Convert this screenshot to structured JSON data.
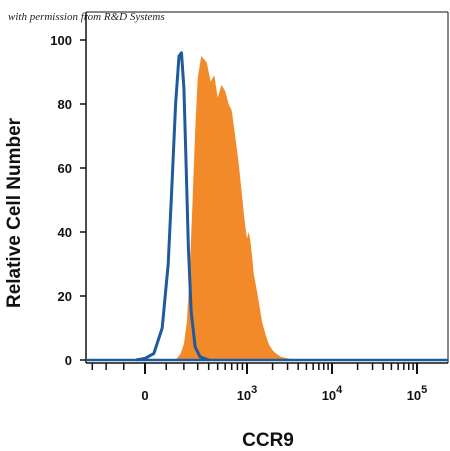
{
  "watermark": "with permission from R&D Systems",
  "chart_data": {
    "type": "area",
    "xlabel": "CCR9",
    "ylabel": "Relative Cell Number",
    "xscale": "biexponential",
    "ylim": [
      0,
      100
    ],
    "y_ticks": [
      0,
      20,
      40,
      60,
      80,
      100
    ],
    "x_ticks": [
      {
        "label": "0",
        "value": 0
      },
      {
        "base": "10",
        "exp": "3",
        "value": 1000
      },
      {
        "base": "10",
        "exp": "4",
        "value": 10000
      },
      {
        "base": "10",
        "exp": "5",
        "value": 100000
      }
    ],
    "grid": false,
    "series": [
      {
        "style": "line",
        "color": "#1f5a9e",
        "x": [
          -40,
          0,
          40,
          80,
          110,
          130,
          150,
          170,
          185,
          200,
          215,
          230,
          250,
          280,
          320,
          400
        ],
        "y": [
          0,
          0.5,
          2,
          10,
          30,
          55,
          80,
          95,
          96,
          85,
          60,
          35,
          15,
          4,
          1,
          0
        ]
      },
      {
        "style": "filled",
        "color": "#f28a2a",
        "x": [
          150,
          180,
          200,
          220,
          240,
          260,
          280,
          300,
          330,
          380,
          420,
          460,
          500,
          550,
          600,
          650,
          700,
          760,
          820,
          900,
          950,
          1000,
          1050,
          1100,
          1150,
          1200,
          1300,
          1400,
          1500,
          1650,
          1800,
          2000,
          2200,
          2500,
          3000,
          3600,
          4500
        ],
        "y": [
          0,
          2,
          5,
          12,
          28,
          50,
          72,
          88,
          95,
          93,
          87,
          89,
          82,
          86,
          84,
          80,
          78,
          70,
          62,
          50,
          43,
          38,
          40,
          37,
          32,
          27,
          22,
          17,
          12,
          8,
          5,
          3,
          2,
          1,
          0.5,
          0.2,
          0
        ]
      }
    ]
  }
}
